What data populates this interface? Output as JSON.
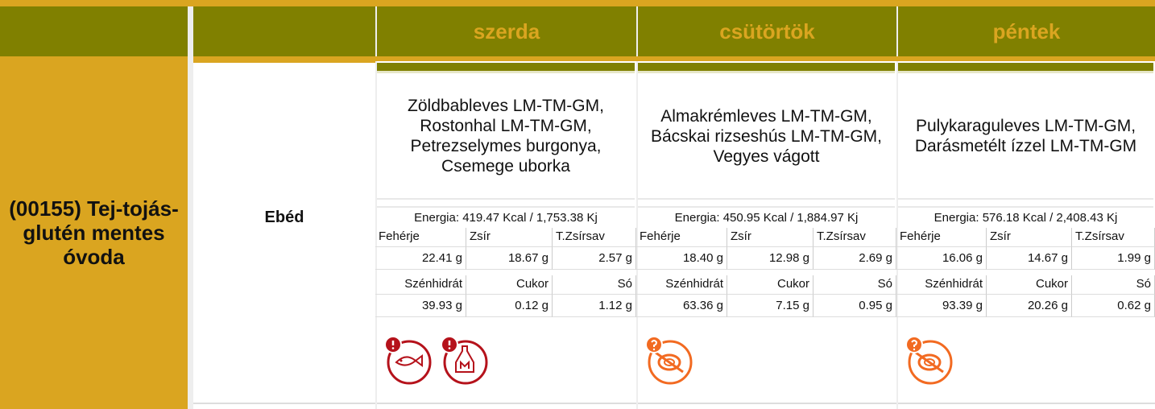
{
  "header": {
    "days": [
      "szerda",
      "csütörtök",
      "péntek"
    ]
  },
  "row": {
    "group": "(00155) Tej-tojás-glutén mentes óvoda",
    "meal": "Ebéd",
    "menus": [
      {
        "food": "Zöldbableves LM-TM-GM, Rostonhal LM-TM-GM, Petrezselymes burgonya, Csemege uborka",
        "energy": "Energia: 419.47 Kcal / 1,753.38 Kj",
        "nutrients": [
          {
            "label": "Fehérje",
            "value": "22.41 g"
          },
          {
            "label": "Zsír",
            "value": "18.67 g"
          },
          {
            "label": "T.Zsírsav",
            "value": "2.57 g"
          },
          {
            "label": "Szénhidrát",
            "value": "39.93 g"
          },
          {
            "label": "Cukor",
            "value": "0.12 g"
          },
          {
            "label": "Só",
            "value": "1.12 g"
          }
        ]
      },
      {
        "food": "Almakrémleves LM-TM-GM, Bácskai rizseshús LM-TM-GM, Vegyes vágott",
        "energy": "Energia: 450.95 Kcal / 1,884.97 Kj",
        "nutrients": [
          {
            "label": "Fehérje",
            "value": "18.40 g"
          },
          {
            "label": "Zsír",
            "value": "12.98 g"
          },
          {
            "label": "T.Zsírsav",
            "value": "2.69 g"
          },
          {
            "label": "Szénhidrát",
            "value": "63.36 g"
          },
          {
            "label": "Cukor",
            "value": "7.15 g"
          },
          {
            "label": "Só",
            "value": "0.95 g"
          }
        ]
      },
      {
        "food": "Pulykaraguleves LM-TM-GM, Darásmetélt ízzel LM-TM-GM",
        "energy": "Energia: 576.18 Kcal / 2,408.43 Kj",
        "nutrients": [
          {
            "label": "Fehérje",
            "value": "16.06 g"
          },
          {
            "label": "Zsír",
            "value": "14.67 g"
          },
          {
            "label": "T.Zsírsav",
            "value": "1.99 g"
          },
          {
            "label": "Szénhidrát",
            "value": "93.39 g"
          },
          {
            "label": "Cukor",
            "value": "20.26 g"
          },
          {
            "label": "Só",
            "value": "0.62 g"
          }
        ]
      }
    ]
  }
}
